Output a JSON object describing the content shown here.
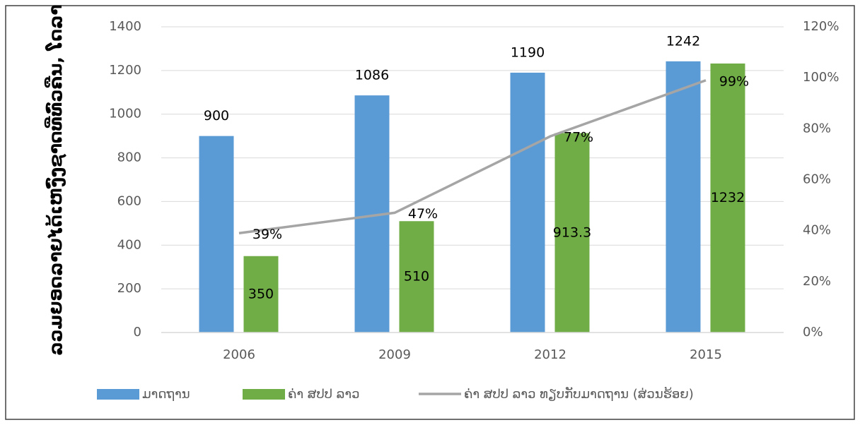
{
  "chart_data": {
    "type": "bar",
    "y_axis_label": "ລວມຍອດລາຍໄດ້ເຫງົ່ງຊາດທີ່ທົ່ວຄືນ, ໂດລາ",
    "categories": [
      "2006",
      "2009",
      "2012",
      "2015"
    ],
    "series": [
      {
        "name": "ມາດຖານ",
        "color": "#5b9bd5",
        "values": [
          900,
          1086,
          1190,
          1242
        ]
      },
      {
        "name": "ຄ່າ ສປປ ລາວ",
        "color": "#70ad47",
        "values": [
          350,
          510,
          913.3,
          1232
        ]
      },
      {
        "name": "ຄ່າ ສປປ ລາວ ທຽບກັບມາດຖານ (ສ່ວນຮ້ອຍ)",
        "color": "#a5a5a5",
        "type": "line",
        "axis": "y2",
        "values": [
          39,
          47,
          77,
          99
        ],
        "value_labels": [
          "39%",
          "47%",
          "77%",
          "99%"
        ]
      }
    ],
    "ylim": [
      0,
      1400
    ],
    "yticks": [
      0,
      200,
      400,
      600,
      800,
      1000,
      1200,
      1400
    ],
    "y2lim": [
      0,
      120
    ],
    "y2ticks": [
      {
        "value": 0,
        "label": "0%"
      },
      {
        "value": 20,
        "label": "20%"
      },
      {
        "value": 40,
        "label": "40%"
      },
      {
        "value": 60,
        "label": "60%"
      },
      {
        "value": 80,
        "label": "80%"
      },
      {
        "value": 100,
        "label": "100%"
      },
      {
        "value": 120,
        "label": "120%"
      }
    ],
    "grid": true,
    "legend": "bottom"
  }
}
